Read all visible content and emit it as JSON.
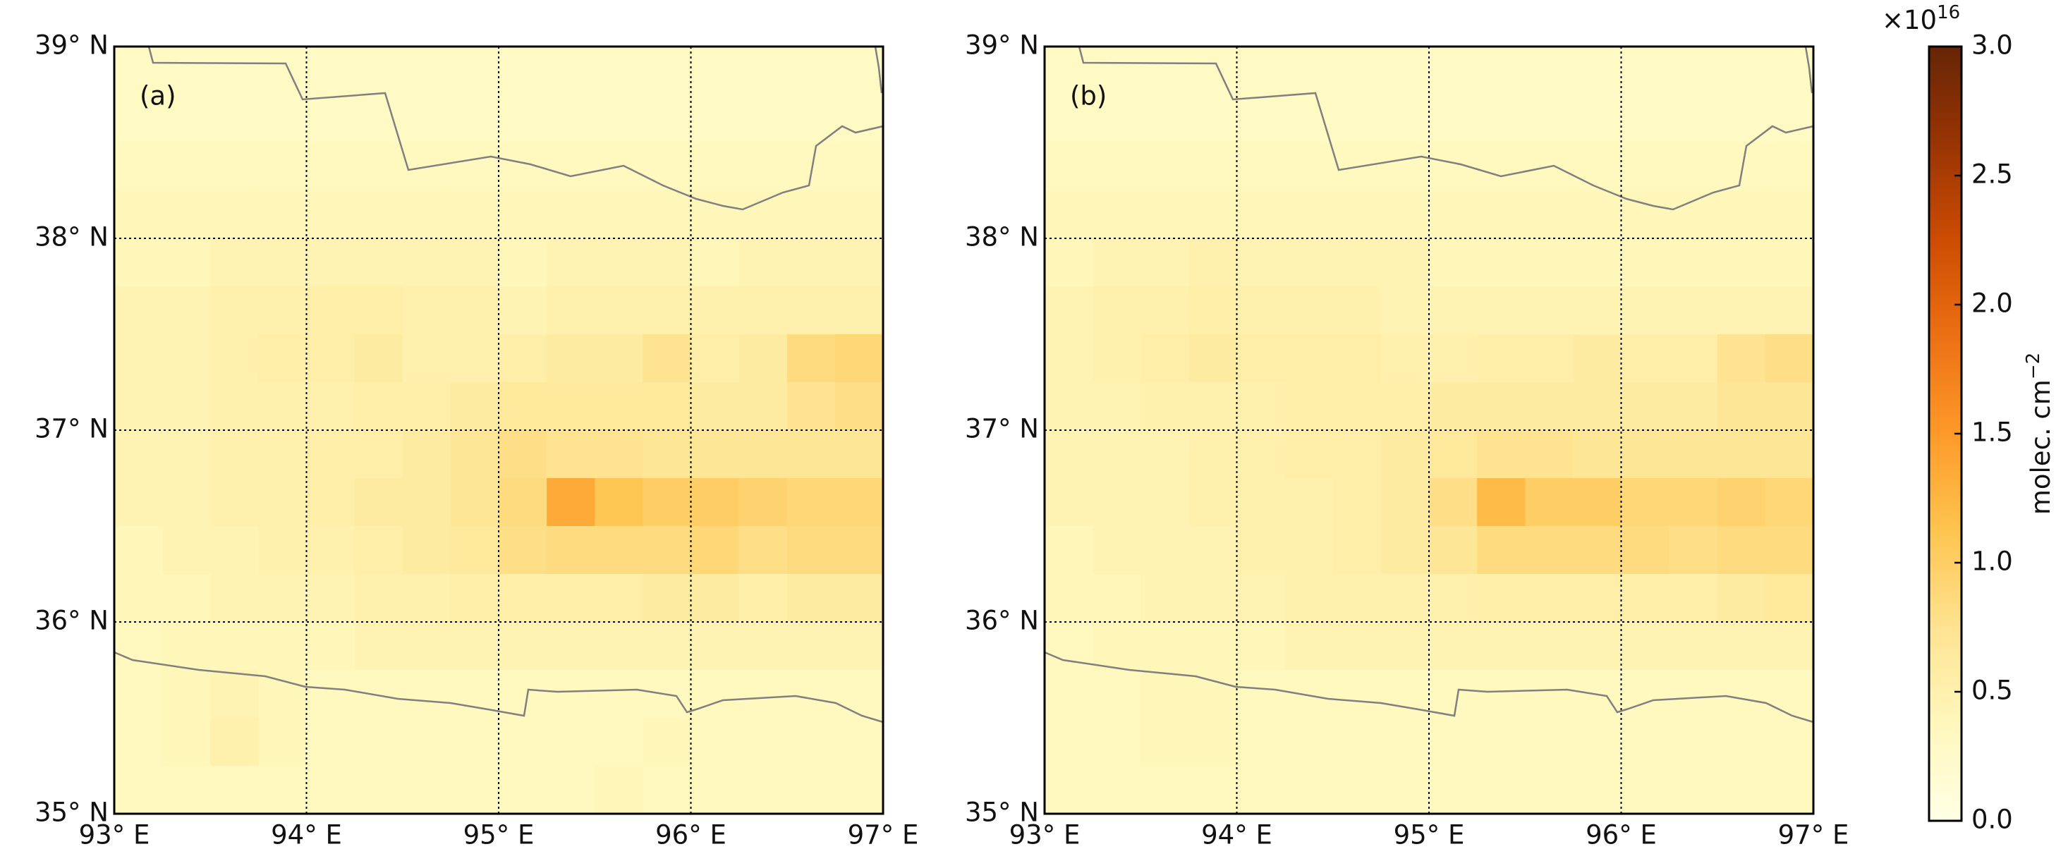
{
  "chart_data": [
    {
      "type": "heatmap",
      "label": "(a)",
      "xlim": [
        93,
        97
      ],
      "ylim": [
        35,
        39
      ],
      "grid": true,
      "xticks": [
        {
          "value": 93,
          "label": "93° E"
        },
        {
          "value": 94,
          "label": "94° E"
        },
        {
          "value": 95,
          "label": "95° E"
        },
        {
          "value": 96,
          "label": "96° E"
        },
        {
          "value": 97,
          "label": "97° E"
        }
      ],
      "yticks": [
        {
          "value": 35,
          "label": "35° N"
        },
        {
          "value": 36,
          "label": "36° N"
        },
        {
          "value": 37,
          "label": "37° N"
        },
        {
          "value": 38,
          "label": "38° N"
        },
        {
          "value": 39,
          "label": "39° N"
        }
      ],
      "z": [
        [
          0.3,
          0.3,
          0.3,
          0.3,
          0.3,
          0.3,
          0.3,
          0.3,
          0.3,
          0.3,
          0.3,
          0.3,
          0.3,
          0.3,
          0.3,
          0.3
        ],
        [
          0.3,
          0.3,
          0.3,
          0.3,
          0.3,
          0.3,
          0.3,
          0.3,
          0.3,
          0.3,
          0.3,
          0.3,
          0.3,
          0.3,
          0.3,
          0.3
        ],
        [
          0.35,
          0.35,
          0.35,
          0.35,
          0.35,
          0.35,
          0.35,
          0.35,
          0.35,
          0.35,
          0.35,
          0.35,
          0.35,
          0.35,
          0.35,
          0.35
        ],
        [
          0.4,
          0.4,
          0.4,
          0.4,
          0.4,
          0.4,
          0.4,
          0.4,
          0.4,
          0.4,
          0.4,
          0.4,
          0.4,
          0.4,
          0.4,
          0.4
        ],
        [
          0.4,
          0.4,
          0.45,
          0.45,
          0.45,
          0.45,
          0.45,
          0.45,
          0.4,
          0.45,
          0.45,
          0.45,
          0.4,
          0.45,
          0.45,
          0.45
        ],
        [
          0.45,
          0.45,
          0.5,
          0.5,
          0.55,
          0.55,
          0.5,
          0.5,
          0.45,
          0.5,
          0.5,
          0.5,
          0.5,
          0.5,
          0.5,
          0.5
        ],
        [
          0.45,
          0.45,
          0.5,
          0.55,
          0.55,
          0.6,
          0.5,
          0.5,
          0.55,
          0.6,
          0.6,
          0.75,
          0.55,
          0.6,
          0.85,
          0.9
        ],
        [
          0.45,
          0.45,
          0.5,
          0.5,
          0.5,
          0.55,
          0.55,
          0.6,
          0.65,
          0.65,
          0.65,
          0.65,
          0.6,
          0.6,
          0.75,
          0.8
        ],
        [
          0.45,
          0.45,
          0.5,
          0.5,
          0.55,
          0.55,
          0.6,
          0.7,
          0.8,
          0.75,
          0.75,
          0.7,
          0.7,
          0.7,
          0.7,
          0.7
        ],
        [
          0.45,
          0.45,
          0.5,
          0.5,
          0.55,
          0.6,
          0.6,
          0.7,
          0.85,
          1.35,
          1.1,
          1.0,
          1.0,
          0.95,
          0.9,
          0.9
        ],
        [
          0.4,
          0.45,
          0.45,
          0.5,
          0.5,
          0.55,
          0.6,
          0.65,
          0.8,
          0.85,
          0.85,
          0.85,
          0.9,
          0.8,
          0.85,
          0.85
        ],
        [
          0.4,
          0.4,
          0.45,
          0.45,
          0.45,
          0.5,
          0.5,
          0.55,
          0.55,
          0.55,
          0.55,
          0.6,
          0.6,
          0.55,
          0.6,
          0.6
        ],
        [
          0.35,
          0.4,
          0.4,
          0.4,
          0.4,
          0.45,
          0.45,
          0.45,
          0.45,
          0.45,
          0.45,
          0.45,
          0.45,
          0.45,
          0.45,
          0.45
        ],
        [
          0.35,
          0.4,
          0.45,
          0.4,
          0.35,
          0.35,
          0.35,
          0.35,
          0.35,
          0.35,
          0.35,
          0.35,
          0.35,
          0.35,
          0.35,
          0.35
        ],
        [
          0.35,
          0.4,
          0.5,
          0.4,
          0.35,
          0.35,
          0.35,
          0.35,
          0.35,
          0.35,
          0.35,
          0.4,
          0.35,
          0.35,
          0.35,
          0.35
        ],
        [
          0.35,
          0.35,
          0.35,
          0.35,
          0.35,
          0.35,
          0.35,
          0.35,
          0.35,
          0.35,
          0.4,
          0.35,
          0.35,
          0.35,
          0.35,
          0.35
        ]
      ]
    },
    {
      "type": "heatmap",
      "label": "(b)",
      "xlim": [
        93,
        97
      ],
      "ylim": [
        35,
        39
      ],
      "grid": true,
      "xticks": [
        {
          "value": 93,
          "label": "93° E"
        },
        {
          "value": 94,
          "label": "94° E"
        },
        {
          "value": 95,
          "label": "95° E"
        },
        {
          "value": 96,
          "label": "96° E"
        },
        {
          "value": 97,
          "label": "97° E"
        }
      ],
      "yticks": [
        {
          "value": 35,
          "label": "35° N"
        },
        {
          "value": 36,
          "label": "36° N"
        },
        {
          "value": 37,
          "label": "37° N"
        },
        {
          "value": 38,
          "label": "38° N"
        },
        {
          "value": 39,
          "label": "39° N"
        }
      ],
      "z": [
        [
          0.3,
          0.3,
          0.3,
          0.3,
          0.3,
          0.3,
          0.3,
          0.3,
          0.3,
          0.3,
          0.3,
          0.3,
          0.3,
          0.3,
          0.3,
          0.3
        ],
        [
          0.3,
          0.3,
          0.3,
          0.3,
          0.3,
          0.3,
          0.3,
          0.3,
          0.3,
          0.3,
          0.3,
          0.3,
          0.3,
          0.3,
          0.3,
          0.3
        ],
        [
          0.35,
          0.35,
          0.35,
          0.35,
          0.35,
          0.35,
          0.35,
          0.35,
          0.35,
          0.35,
          0.35,
          0.35,
          0.35,
          0.35,
          0.35,
          0.35
        ],
        [
          0.4,
          0.4,
          0.4,
          0.4,
          0.4,
          0.4,
          0.4,
          0.4,
          0.4,
          0.4,
          0.4,
          0.4,
          0.4,
          0.4,
          0.4,
          0.4
        ],
        [
          0.4,
          0.45,
          0.45,
          0.5,
          0.45,
          0.45,
          0.45,
          0.45,
          0.4,
          0.4,
          0.4,
          0.4,
          0.4,
          0.4,
          0.4,
          0.4
        ],
        [
          0.45,
          0.5,
          0.5,
          0.55,
          0.5,
          0.5,
          0.5,
          0.45,
          0.45,
          0.45,
          0.45,
          0.45,
          0.45,
          0.45,
          0.45,
          0.45
        ],
        [
          0.45,
          0.5,
          0.55,
          0.6,
          0.55,
          0.55,
          0.55,
          0.5,
          0.5,
          0.55,
          0.55,
          0.6,
          0.55,
          0.55,
          0.75,
          0.8
        ],
        [
          0.45,
          0.45,
          0.5,
          0.5,
          0.5,
          0.55,
          0.55,
          0.55,
          0.6,
          0.6,
          0.6,
          0.6,
          0.6,
          0.6,
          0.7,
          0.7
        ],
        [
          0.45,
          0.45,
          0.45,
          0.5,
          0.5,
          0.55,
          0.55,
          0.6,
          0.65,
          0.75,
          0.75,
          0.7,
          0.7,
          0.7,
          0.7,
          0.7
        ],
        [
          0.45,
          0.45,
          0.45,
          0.5,
          0.5,
          0.5,
          0.55,
          0.6,
          0.8,
          1.2,
          1.0,
          1.0,
          0.9,
          0.9,
          0.95,
          0.9
        ],
        [
          0.4,
          0.45,
          0.45,
          0.45,
          0.5,
          0.5,
          0.55,
          0.6,
          0.7,
          0.85,
          0.85,
          0.85,
          0.85,
          0.8,
          0.85,
          0.85
        ],
        [
          0.4,
          0.4,
          0.45,
          0.45,
          0.45,
          0.5,
          0.5,
          0.5,
          0.5,
          0.55,
          0.55,
          0.55,
          0.55,
          0.55,
          0.6,
          0.65
        ],
        [
          0.35,
          0.4,
          0.4,
          0.4,
          0.4,
          0.45,
          0.45,
          0.45,
          0.45,
          0.45,
          0.45,
          0.45,
          0.45,
          0.45,
          0.45,
          0.45
        ],
        [
          0.35,
          0.35,
          0.4,
          0.4,
          0.35,
          0.35,
          0.35,
          0.35,
          0.35,
          0.35,
          0.35,
          0.35,
          0.35,
          0.35,
          0.35,
          0.35
        ],
        [
          0.35,
          0.35,
          0.4,
          0.4,
          0.35,
          0.35,
          0.35,
          0.35,
          0.35,
          0.35,
          0.35,
          0.35,
          0.35,
          0.35,
          0.35,
          0.35
        ],
        [
          0.35,
          0.35,
          0.35,
          0.35,
          0.35,
          0.35,
          0.35,
          0.35,
          0.35,
          0.35,
          0.35,
          0.35,
          0.35,
          0.35,
          0.35,
          0.35
        ]
      ]
    }
  ],
  "colorbar": {
    "lim": [
      0,
      3
    ],
    "ticks": [
      {
        "value": 0,
        "label": "0.0"
      },
      {
        "value": 0.5,
        "label": "0.5"
      },
      {
        "value": 1,
        "label": "1.0"
      },
      {
        "value": 1.5,
        "label": "1.5"
      },
      {
        "value": 2,
        "label": "2.0"
      },
      {
        "value": 2.5,
        "label": "2.5"
      },
      {
        "value": 3,
        "label": "3.0"
      }
    ],
    "colormap": [
      "#ffffe5",
      "#fff7bc",
      "#fee391",
      "#fec44f",
      "#fe9929",
      "#ec7014",
      "#cc4c02",
      "#993404",
      "#662506"
    ],
    "label": "molec.  cm",
    "label_exponent": "−2",
    "offset": "×10",
    "offset_exponent": "16"
  }
}
